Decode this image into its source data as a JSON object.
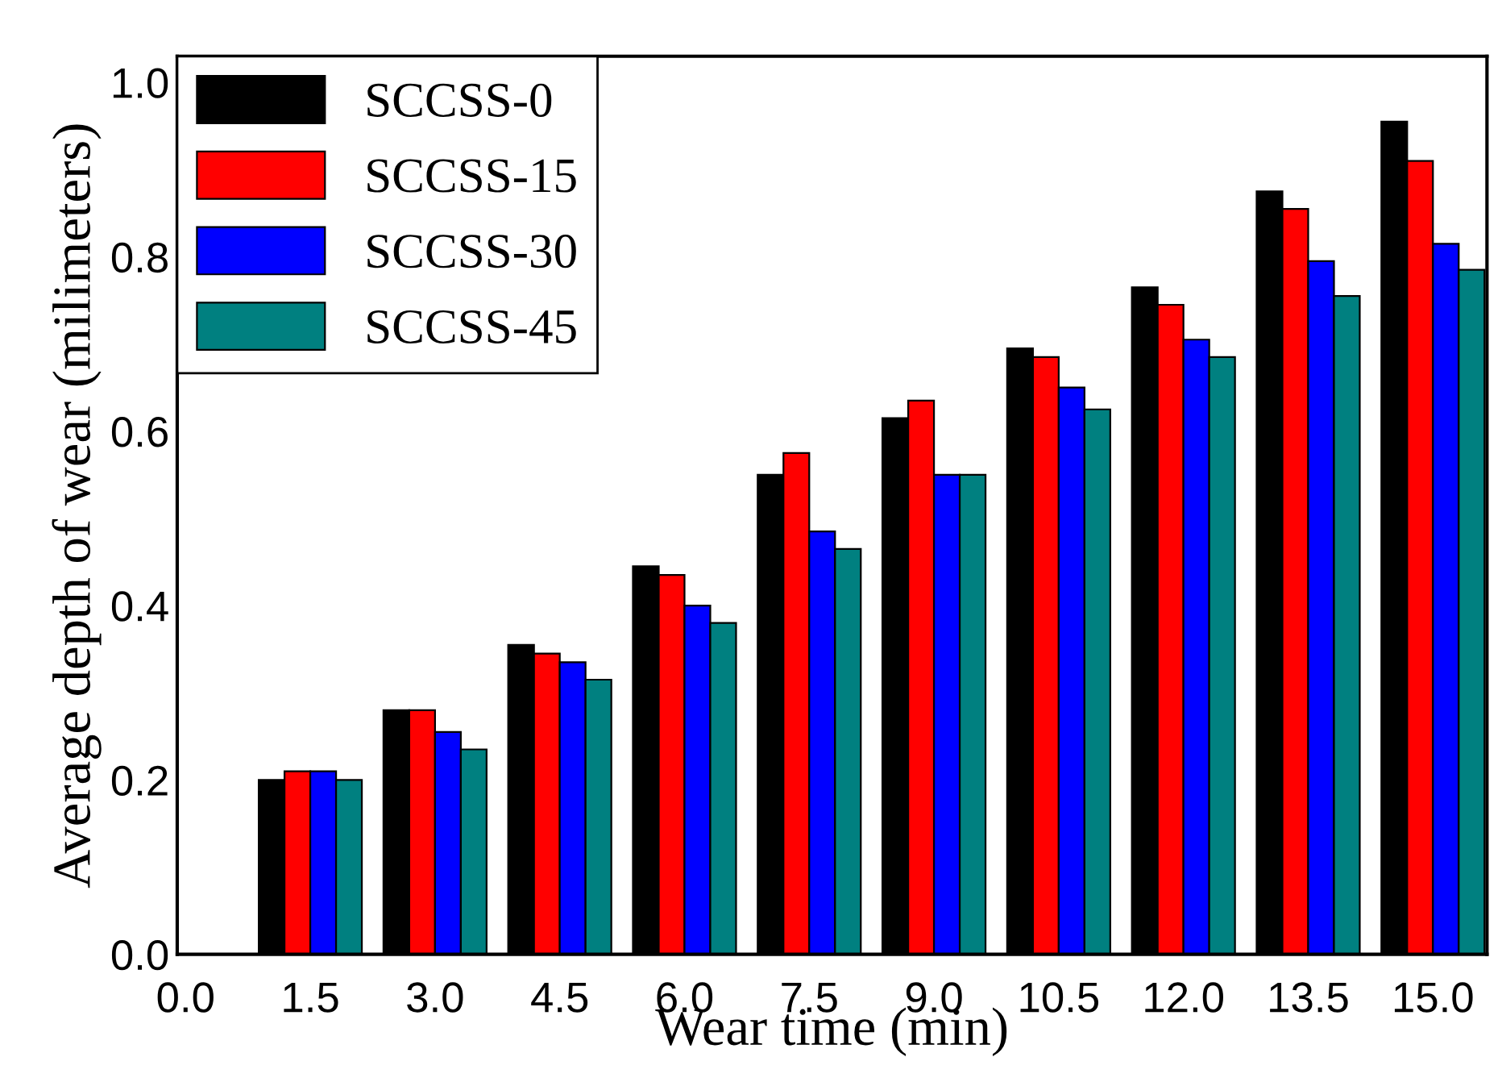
{
  "chart_data": {
    "type": "bar",
    "xlabel": "Wear time (min)",
    "ylabel": "Average depth of wear (milimeters)",
    "x": [
      1.5,
      3.0,
      4.5,
      6.0,
      7.5,
      9.0,
      10.5,
      12.0,
      13.5,
      15.0
    ],
    "series": [
      {
        "name": "SCCSS-0",
        "color": "#000000",
        "values": [
          0.2,
          0.28,
          0.355,
          0.445,
          0.55,
          0.615,
          0.695,
          0.765,
          0.875,
          0.955
        ]
      },
      {
        "name": "SCCSS-15",
        "color": "#ff0000",
        "values": [
          0.21,
          0.28,
          0.345,
          0.435,
          0.575,
          0.635,
          0.685,
          0.745,
          0.855,
          0.91
        ]
      },
      {
        "name": "SCCSS-30",
        "color": "#0000ff",
        "values": [
          0.21,
          0.255,
          0.335,
          0.4,
          0.485,
          0.55,
          0.65,
          0.705,
          0.795,
          0.815
        ]
      },
      {
        "name": "SCCSS-45",
        "color": "#008080",
        "values": [
          0.2,
          0.235,
          0.315,
          0.38,
          0.465,
          0.55,
          0.625,
          0.685,
          0.755,
          0.785
        ]
      }
    ],
    "xlim": [
      -0.1,
      15.65
    ],
    "xticks": [
      {
        "value": 0,
        "label": "0.0"
      },
      1.5,
      {
        "value": 3,
        "label": "3.0"
      },
      4.5,
      {
        "value": 6,
        "label": "6.0"
      },
      7.5,
      {
        "value": 9,
        "label": "9.0"
      },
      10.5,
      {
        "value": 12,
        "label": "12.0"
      },
      13.5,
      {
        "value": 15,
        "label": "15.0"
      }
    ],
    "ylim": [
      0,
      1.03
    ],
    "yticks": [
      {
        "value": 0,
        "label": "0.0"
      },
      0.2,
      0.4,
      0.6,
      0.8,
      {
        "value": 1,
        "label": "1.0"
      }
    ],
    "legend": "top left",
    "grid": false
  }
}
